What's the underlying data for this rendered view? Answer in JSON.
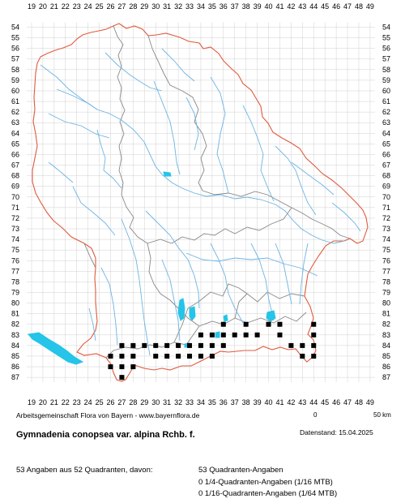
{
  "map": {
    "x_axis_labels": [
      "19",
      "20",
      "21",
      "22",
      "23",
      "24",
      "25",
      "26",
      "27",
      "28",
      "29",
      "30",
      "31",
      "32",
      "33",
      "34",
      "35",
      "36",
      "37",
      "38",
      "39",
      "40",
      "41",
      "42",
      "43",
      "44",
      "45",
      "46",
      "47",
      "48",
      "49"
    ],
    "y_axis_labels": [
      "54",
      "55",
      "56",
      "57",
      "58",
      "59",
      "60",
      "61",
      "62",
      "63",
      "64",
      "65",
      "66",
      "67",
      "68",
      "69",
      "70",
      "71",
      "72",
      "73",
      "74",
      "75",
      "76",
      "77",
      "78",
      "79",
      "80",
      "81",
      "82",
      "83",
      "84",
      "85",
      "86",
      "87"
    ],
    "occurrences": [
      [
        27,
        84
      ],
      [
        27,
        85
      ],
      [
        27,
        86
      ],
      [
        28,
        84
      ],
      [
        28,
        85
      ],
      [
        28,
        86
      ],
      [
        29,
        84
      ],
      [
        30,
        84
      ],
      [
        31,
        84
      ],
      [
        31,
        85
      ],
      [
        32,
        84
      ],
      [
        32,
        85
      ],
      [
        33,
        85
      ],
      [
        34,
        84
      ],
      [
        34,
        85
      ],
      [
        35,
        84
      ],
      [
        35,
        85
      ],
      [
        34,
        83
      ],
      [
        35,
        83
      ],
      [
        36,
        83
      ],
      [
        36,
        82
      ],
      [
        37,
        83
      ],
      [
        38,
        82
      ],
      [
        38,
        83
      ],
      [
        39,
        83
      ],
      [
        40,
        82
      ],
      [
        41,
        83
      ],
      [
        41,
        82
      ],
      [
        43,
        84
      ],
      [
        44,
        84
      ],
      [
        44,
        83
      ],
      [
        44,
        82
      ],
      [
        43,
        85
      ],
      [
        44,
        85
      ],
      [
        26,
        85
      ],
      [
        27,
        87
      ],
      [
        26,
        86
      ],
      [
        30,
        85
      ],
      [
        33,
        84
      ],
      [
        36,
        84
      ],
      [
        42,
        84
      ]
    ],
    "colors": {
      "border": "#e05a3c",
      "admin": "#888888",
      "river": "#6cb4e4",
      "lake": "#25c4e8",
      "grid": "#d0d0d0",
      "marker": "#000000"
    }
  },
  "credit": "Arbeitsgemeinschaft Flora von Bayern - www.bayernflora.de",
  "scale": {
    "start": "0",
    "end": "50 km"
  },
  "date": "Datenstand: 15.04.2025",
  "title": "Gymnadenia conopsea var. alpina Rchb. f.",
  "stats": {
    "summary": "53 Angaben aus 52 Quadranten, davon:",
    "line1": "53 Quadranten-Angaben",
    "line2": "0 1/4-Quadranten-Angaben (1/16 MTB)",
    "line3": "0 1/16-Quadranten-Angaben (1/64 MTB)"
  }
}
